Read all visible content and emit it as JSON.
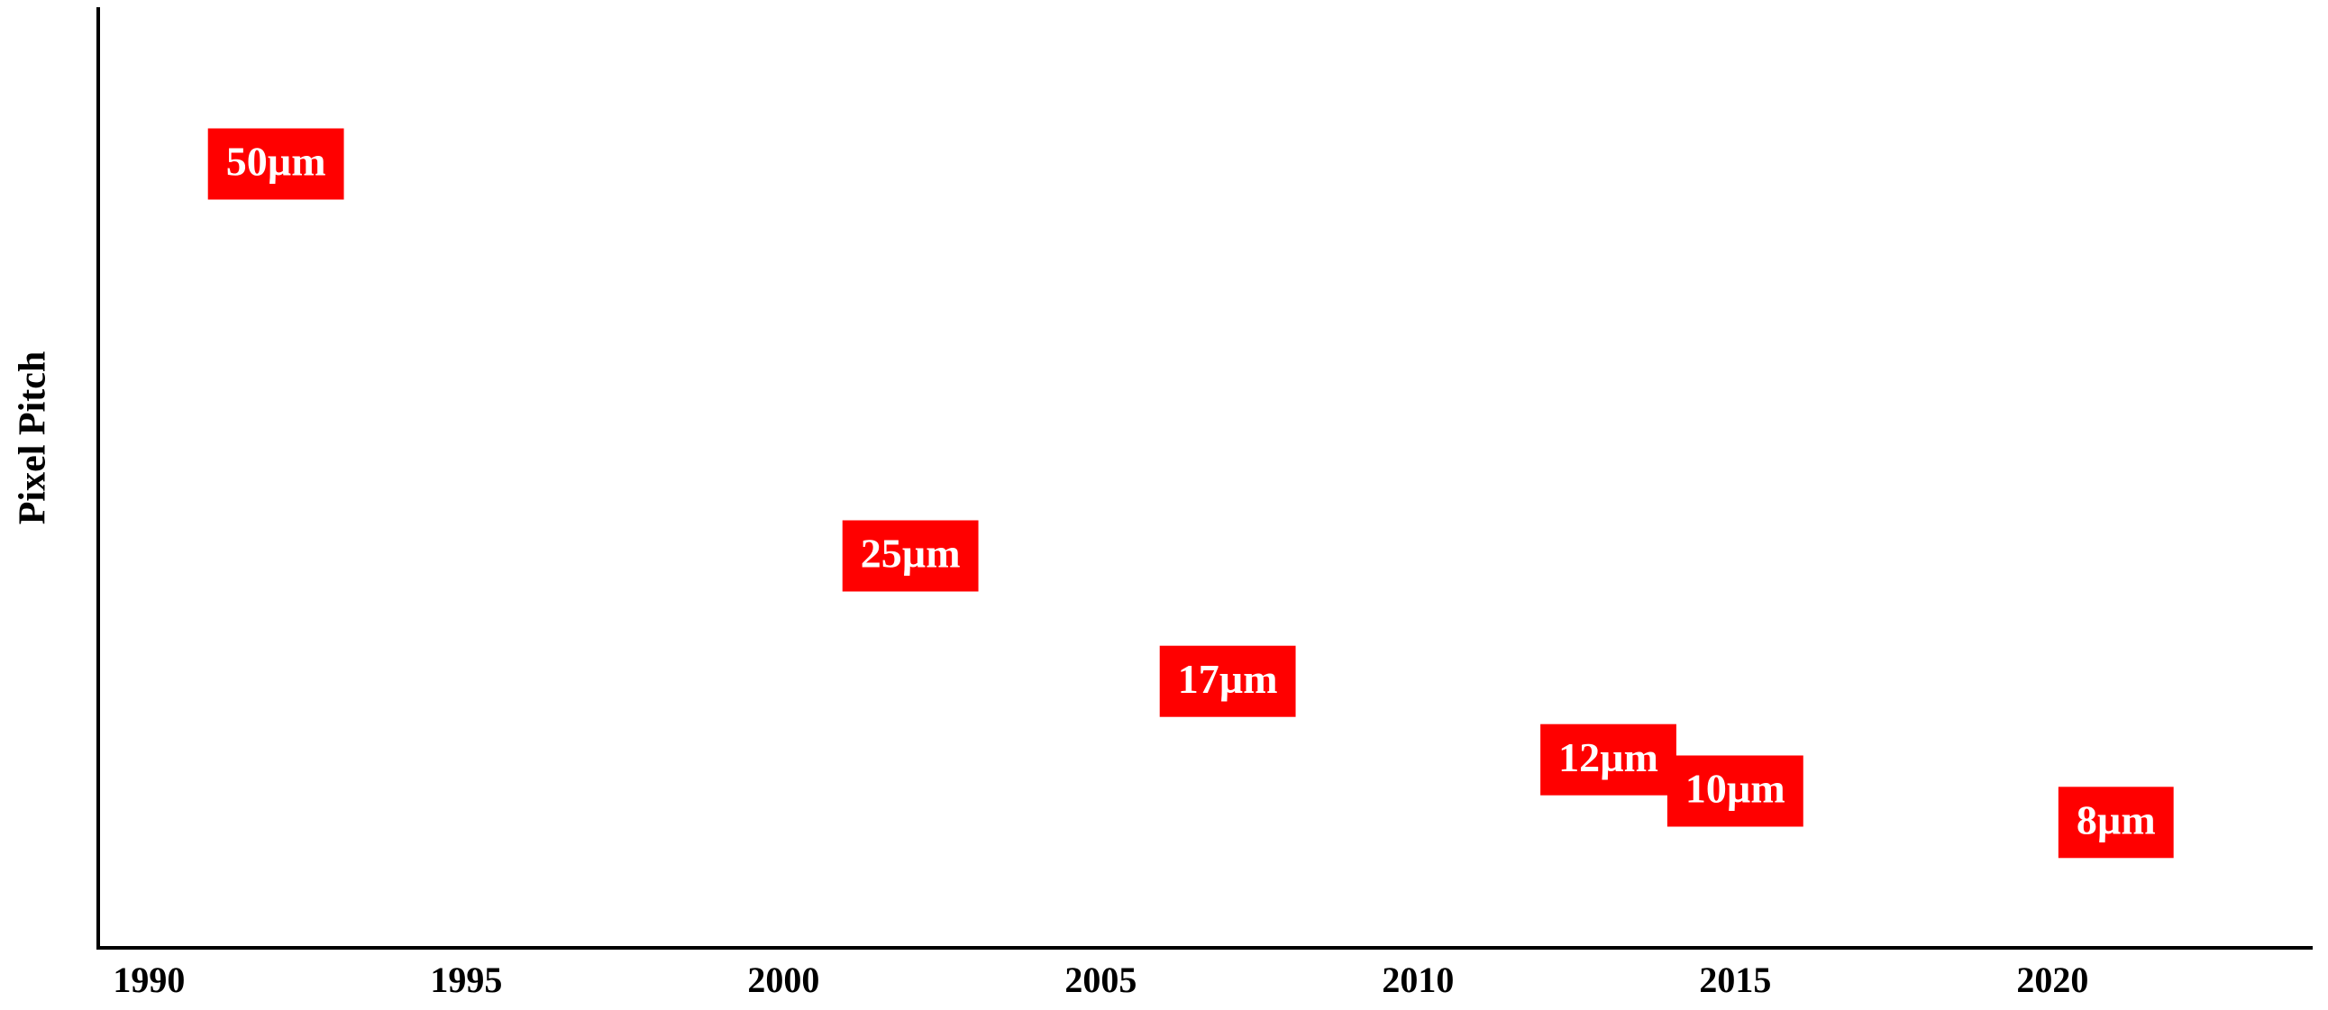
{
  "chart_data": {
    "type": "scatter",
    "y_label": "Pixel Pitch",
    "x": [
      1992,
      2002,
      2007,
      2013,
      2015,
      2021
    ],
    "values": [
      50,
      25,
      17,
      12,
      10,
      8
    ],
    "value_labels": [
      "50µm",
      "25µm",
      "17µm",
      "12µm",
      "10µm",
      "8µm"
    ],
    "color": "#ff0000",
    "xlim": [
      1989.2,
      2024.1
    ],
    "xticks": [
      1990,
      1995,
      2000,
      2005,
      2010,
      2015,
      2020
    ],
    "ylim": [
      0,
      60
    ]
  }
}
